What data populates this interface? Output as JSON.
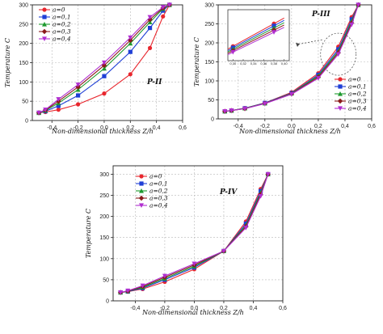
{
  "chart_data": [
    {
      "panel": "P-II",
      "type": "line",
      "title": "",
      "annotation": "P-II",
      "xlabel": "Non-dimensional thickness Z/h",
      "ylabel": "Temperature C",
      "xlim": [
        -0.55,
        0.6
      ],
      "ylim": [
        0,
        300
      ],
      "xticks": [
        -0.4,
        -0.2,
        0.0,
        0.2,
        0.4,
        0.6
      ],
      "xtick_labels": [
        "-0,4",
        "-0,2",
        "0,0",
        "0,2",
        "0,4",
        "0,6"
      ],
      "yticks": [
        0,
        50,
        100,
        150,
        200,
        250,
        300
      ],
      "ytick_labels": [
        "0",
        "50",
        "100",
        "150",
        "200",
        "250",
        "300"
      ],
      "grid": true,
      "legend_position": "top-left",
      "series": [
        {
          "name": "a=0",
          "color": "#e8262d",
          "marker": "circle",
          "x": [
            -0.5,
            -0.45,
            -0.35,
            -0.2,
            0.0,
            0.2,
            0.35,
            0.45,
            0.5
          ],
          "y": [
            20,
            22,
            28,
            42,
            70,
            120,
            188,
            270,
            300
          ]
        },
        {
          "name": "a=0,1",
          "color": "#1f3fd6",
          "marker": "square",
          "x": [
            -0.5,
            -0.45,
            -0.35,
            -0.2,
            0.0,
            0.2,
            0.35,
            0.45,
            0.5
          ],
          "y": [
            20,
            24,
            38,
            65,
            115,
            178,
            240,
            285,
            300
          ]
        },
        {
          "name": "a=0,2",
          "color": "#1e9a2f",
          "marker": "triangle",
          "x": [
            -0.5,
            -0.45,
            -0.35,
            -0.2,
            0.0,
            0.2,
            0.35,
            0.45,
            0.5
          ],
          "y": [
            20,
            26,
            45,
            80,
            135,
            200,
            255,
            290,
            300
          ]
        },
        {
          "name": "a=0,3",
          "color": "#8a1a1a",
          "marker": "diamond",
          "x": [
            -0.5,
            -0.45,
            -0.35,
            -0.2,
            0.0,
            0.2,
            0.35,
            0.45,
            0.5
          ],
          "y": [
            20,
            27,
            50,
            87,
            143,
            208,
            262,
            292,
            300
          ]
        },
        {
          "name": "a=0,4",
          "color": "#b12fd0",
          "marker": "triangle-down",
          "x": [
            -0.5,
            -0.45,
            -0.35,
            -0.2,
            0.0,
            0.2,
            0.35,
            0.45,
            0.5
          ],
          "y": [
            20,
            28,
            55,
            93,
            150,
            215,
            268,
            294,
            300
          ]
        }
      ]
    },
    {
      "panel": "P-III",
      "type": "line",
      "title": "",
      "annotation": "P-III",
      "xlabel": "Non-dimensional thickness Z/h",
      "ylabel": "Temperature C",
      "xlim": [
        -0.55,
        0.6
      ],
      "ylim": [
        0,
        300
      ],
      "xticks": [
        -0.4,
        -0.2,
        0.0,
        0.2,
        0.4,
        0.6
      ],
      "xtick_labels": [
        "-0,4",
        "-0,2",
        "0,0",
        "0,2",
        "0,4",
        "0,6"
      ],
      "yticks": [
        0,
        50,
        100,
        150,
        200,
        250,
        300
      ],
      "ytick_labels": [
        "0",
        "50",
        "100",
        "150",
        "200",
        "250",
        "300"
      ],
      "grid": true,
      "legend_position": "bottom-right",
      "series": [
        {
          "name": "a=0",
          "color": "#e8262d",
          "marker": "circle",
          "x": [
            -0.5,
            -0.45,
            -0.35,
            -0.2,
            0.0,
            0.2,
            0.35,
            0.45,
            0.5
          ],
          "y": [
            20,
            22,
            28,
            42,
            70,
            120,
            190,
            268,
            300
          ]
        },
        {
          "name": "a=0,1",
          "color": "#1f3fd6",
          "marker": "square",
          "x": [
            -0.5,
            -0.45,
            -0.35,
            -0.2,
            0.0,
            0.2,
            0.35,
            0.45,
            0.5
          ],
          "y": [
            20,
            22,
            28,
            42,
            68,
            116,
            183,
            262,
            300
          ]
        },
        {
          "name": "a=0,2",
          "color": "#1e9a2f",
          "marker": "triangle",
          "x": [
            -0.5,
            -0.45,
            -0.35,
            -0.2,
            0.0,
            0.2,
            0.35,
            0.45,
            0.5
          ],
          "y": [
            20,
            22,
            28,
            41,
            67,
            113,
            178,
            257,
            300
          ]
        },
        {
          "name": "a=0,3",
          "color": "#8a1a1a",
          "marker": "diamond",
          "x": [
            -0.5,
            -0.45,
            -0.35,
            -0.2,
            0.0,
            0.2,
            0.35,
            0.45,
            0.5
          ],
          "y": [
            20,
            22,
            27,
            41,
            66,
            110,
            174,
            252,
            300
          ]
        },
        {
          "name": "a=0,4",
          "color": "#b12fd0",
          "marker": "triangle-down",
          "x": [
            -0.5,
            -0.45,
            -0.35,
            -0.2,
            0.0,
            0.2,
            0.35,
            0.45,
            0.5
          ],
          "y": [
            20,
            22,
            27,
            40,
            65,
            107,
            170,
            248,
            300
          ]
        }
      ],
      "inset": {
        "xticks": [
          0.3,
          0.32,
          0.34,
          0.36,
          0.38,
          0.4
        ],
        "xtick_labels": [
          "0,30",
          "0,32",
          "0,34",
          "0,36",
          "0,38",
          "0,40"
        ],
        "xlim": [
          0.29,
          0.41
        ],
        "ylim": [
          130,
          240
        ],
        "series_y": {
          "a=0": [
            [
              0.29,
              155
            ],
            [
              0.4,
              222
            ]
          ],
          "a=0,1": [
            [
              0.29,
              152
            ],
            [
              0.4,
              217
            ]
          ],
          "a=0,2": [
            [
              0.29,
              149
            ],
            [
              0.4,
              212
            ]
          ],
          "a=0,3": [
            [
              0.29,
              146
            ],
            [
              0.4,
              207
            ]
          ],
          "a=0,4": [
            [
              0.29,
              143
            ],
            [
              0.4,
              202
            ]
          ]
        }
      }
    },
    {
      "panel": "P-IV",
      "type": "line",
      "title": "",
      "annotation": "P-IV",
      "xlabel": "Non-dimensional thickness Z/h",
      "ylabel": "Temperature C",
      "xlim": [
        -0.55,
        0.6
      ],
      "ylim": [
        0,
        320
      ],
      "xticks": [
        -0.4,
        -0.2,
        0.0,
        0.2,
        0.4,
        0.6
      ],
      "xtick_labels": [
        "-0,4",
        "-0,2",
        "0,0",
        "0,2",
        "0,4",
        "0,6"
      ],
      "yticks": [
        0,
        50,
        100,
        150,
        200,
        250,
        300
      ],
      "ytick_labels": [
        "0",
        "50",
        "100",
        "150",
        "200",
        "250",
        "300"
      ],
      "grid": true,
      "legend_position": "top-left",
      "series": [
        {
          "name": "a=0",
          "color": "#e8262d",
          "marker": "circle",
          "x": [
            -0.5,
            -0.45,
            -0.35,
            -0.2,
            0.0,
            0.2,
            0.35,
            0.45,
            0.5
          ],
          "y": [
            20,
            22,
            28,
            45,
            75,
            118,
            188,
            265,
            300
          ]
        },
        {
          "name": "a=0,1",
          "color": "#1f3fd6",
          "marker": "square",
          "x": [
            -0.5,
            -0.45,
            -0.35,
            -0.2,
            0.0,
            0.2,
            0.35,
            0.45,
            0.5
          ],
          "y": [
            20,
            22,
            30,
            50,
            79,
            118,
            183,
            260,
            300
          ]
        },
        {
          "name": "a=0,2",
          "color": "#1e9a2f",
          "marker": "triangle",
          "x": [
            -0.5,
            -0.45,
            -0.35,
            -0.2,
            0.0,
            0.2,
            0.35,
            0.45,
            0.5
          ],
          "y": [
            20,
            23,
            32,
            53,
            82,
            118,
            179,
            256,
            300
          ]
        },
        {
          "name": "a=0,3",
          "color": "#8a1a1a",
          "marker": "diamond",
          "x": [
            -0.5,
            -0.45,
            -0.35,
            -0.2,
            0.0,
            0.2,
            0.35,
            0.45,
            0.5
          ],
          "y": [
            20,
            23,
            34,
            56,
            85,
            118,
            176,
            252,
            300
          ]
        },
        {
          "name": "a=0,4",
          "color": "#b12fd0",
          "marker": "triangle-down",
          "x": [
            -0.5,
            -0.45,
            -0.35,
            -0.2,
            0.0,
            0.2,
            0.35,
            0.45,
            0.5
          ],
          "y": [
            20,
            24,
            36,
            59,
            88,
            118,
            173,
            248,
            300
          ]
        }
      ]
    }
  ]
}
